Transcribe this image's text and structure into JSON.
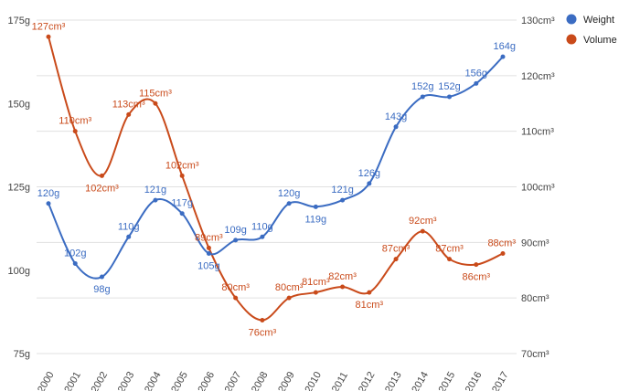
{
  "chart_data": {
    "type": "line",
    "categories": [
      "2000",
      "2001",
      "2002",
      "2003",
      "2004",
      "2005",
      "2006",
      "2007",
      "2008",
      "2009",
      "2010",
      "2011",
      "2012",
      "2013",
      "2014",
      "2015",
      "2016",
      "2017"
    ],
    "series": [
      {
        "name": "Weight",
        "axis": "left",
        "color": "#3b6cc2",
        "values": [
          120,
          102,
          98,
          110,
          121,
          117,
          105,
          109,
          110,
          120,
          119,
          121,
          126,
          143,
          152,
          152,
          156,
          164
        ],
        "labels": [
          "120g",
          "102g",
          "98g",
          "110g",
          "121g",
          "117g",
          "105g",
          "109g",
          "110g",
          "120g",
          "119g",
          "121g",
          "126g",
          "143g",
          "152g",
          "152g",
          "156g",
          "164g"
        ]
      },
      {
        "name": "Volume",
        "axis": "right",
        "color": "#c94a1a",
        "values": [
          127,
          110,
          102,
          113,
          115,
          102,
          89,
          80,
          76,
          80,
          81,
          82,
          81,
          87,
          92,
          87,
          86,
          88
        ],
        "labels": [
          "127cm³",
          "110cm³",
          "102cm³",
          "113cm³",
          "115cm³",
          "102cm³",
          "89cm³",
          "80cm³",
          "76cm³",
          "80cm³",
          "81cm³",
          "82cm³",
          "81cm³",
          "87cm³",
          "92cm³",
          "87cm³",
          "86cm³",
          "88cm³"
        ]
      }
    ],
    "y_left": {
      "ylim": [
        75,
        175
      ],
      "ticks": [
        "75g",
        "100g",
        "125g",
        "150g",
        "175g"
      ],
      "tick_values": [
        75,
        100,
        125,
        150,
        175
      ]
    },
    "y_right": {
      "ylim": [
        70,
        130
      ],
      "ticks": [
        "70cm³",
        "80cm³",
        "90cm³",
        "100cm³",
        "110cm³",
        "120cm³",
        "130cm³"
      ],
      "tick_values": [
        70,
        80,
        90,
        100,
        110,
        120,
        130
      ]
    },
    "curve": "smooth",
    "grid": true,
    "legend_position": "top-right"
  }
}
